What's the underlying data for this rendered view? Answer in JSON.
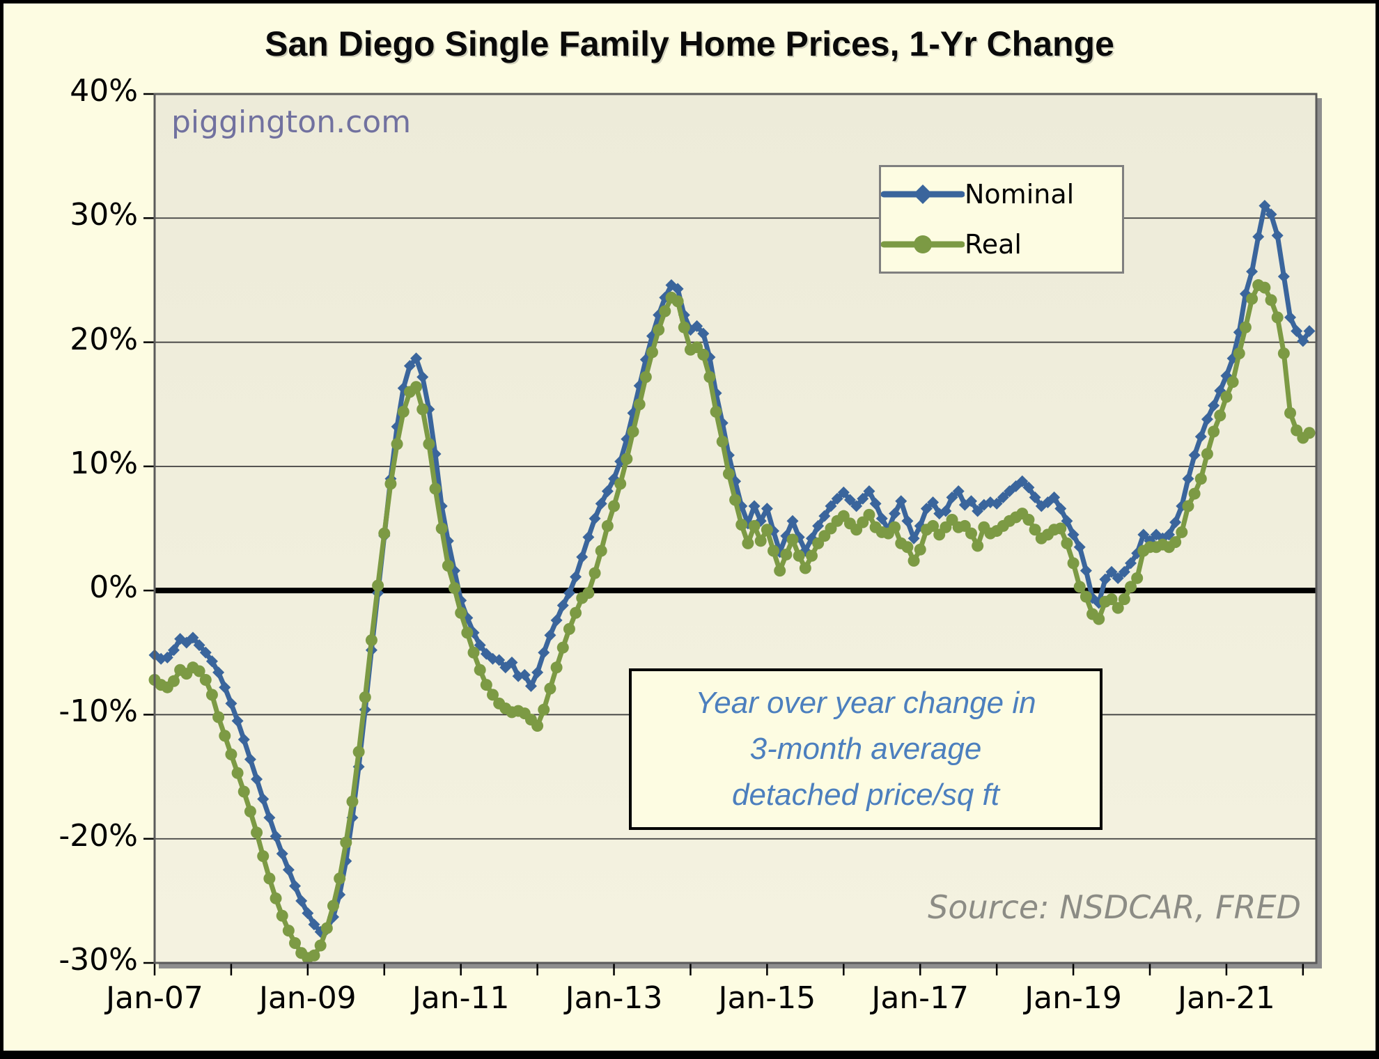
{
  "title": "San Diego Single Family Home Prices, 1-Yr Change",
  "watermark": "piggington.com",
  "source_note": "Source: NSDCAR, FRED",
  "annotation": {
    "lines": [
      "Year over year change in",
      "3-month average",
      "detached price/sq ft"
    ],
    "text_color": "#4C7FBE"
  },
  "colors": {
    "page_background": "#FDFCE2",
    "plot_background_top": "#EDEBD9",
    "plot_background_bottom": "#F4F2E0",
    "plot_border": "#5A5A5A",
    "plot_shadow": "#8E8E8E",
    "gridline": "#3F3F3F",
    "zero_line": "#000000",
    "nominal_line": "#3A659C",
    "real_line": "#7C9A44"
  },
  "chart_data": {
    "type": "line",
    "title": "San Diego Single Family Home Prices, 1-Yr Change",
    "xlabel": "",
    "ylabel": "",
    "ylim": [
      -30,
      40
    ],
    "y_ticks": [
      40,
      30,
      20,
      10,
      0,
      -10,
      -20,
      -30
    ],
    "y_tick_suffix": "%",
    "grid": "horizontal",
    "zero_line_emphasis": true,
    "legend_position": "upper-right-inside",
    "frequency": "monthly",
    "start": "Jan-2007",
    "end": "Feb-2022",
    "x_tick_labels": [
      "Jan-07",
      "Jan-09",
      "Jan-11",
      "Jan-13",
      "Jan-15",
      "Jan-17",
      "Jan-19",
      "Jan-21"
    ],
    "x_label_every_months": 24,
    "x_minor_tick_every_months": 12,
    "series": [
      {
        "name": "Nominal",
        "color": "#3A659C",
        "marker": "diamond",
        "values": [
          -5.2,
          -5.5,
          -5.4,
          -4.8,
          -3.9,
          -4.2,
          -3.8,
          -4.4,
          -5.0,
          -5.7,
          -6.6,
          -7.8,
          -9.1,
          -10.5,
          -12.0,
          -13.6,
          -15.2,
          -16.8,
          -18.3,
          -19.8,
          -21.2,
          -22.5,
          -23.8,
          -25.0,
          -26.0,
          -26.9,
          -27.5,
          -27.3,
          -26.3,
          -24.5,
          -21.8,
          -18.3,
          -14.2,
          -9.6,
          -4.8,
          -0.2,
          4.4,
          9.0,
          13.2,
          16.3,
          18.1,
          18.7,
          17.2,
          14.6,
          11.0,
          6.8,
          4.0,
          1.6,
          -0.8,
          -2.2,
          -3.4,
          -4.4,
          -5.1,
          -5.5,
          -5.6,
          -6.2,
          -5.8,
          -6.9,
          -6.8,
          -7.7,
          -6.6,
          -5.0,
          -3.6,
          -2.4,
          -1.2,
          -0.2,
          1.1,
          2.7,
          4.3,
          5.8,
          7.0,
          8.0,
          9.0,
          10.4,
          12.2,
          14.3,
          16.5,
          18.6,
          20.5,
          22.2,
          23.6,
          24.6,
          24.3,
          22.2,
          21.0,
          21.3,
          20.7,
          18.8,
          15.9,
          13.5,
          10.9,
          8.8,
          6.8,
          5.4,
          6.8,
          5.6,
          6.6,
          4.8,
          3.1,
          4.4,
          5.6,
          4.3,
          3.2,
          4.2,
          5.2,
          6.0,
          6.8,
          7.4,
          7.9,
          7.3,
          6.8,
          7.4,
          8.0,
          7.0,
          5.8,
          4.9,
          6.2,
          7.2,
          5.6,
          4.2,
          5.2,
          6.6,
          7.1,
          6.2,
          6.4,
          7.5,
          8.0,
          6.9,
          7.2,
          6.4,
          6.9,
          7.1,
          7.0,
          7.5,
          8.0,
          8.4,
          8.8,
          8.3,
          7.5,
          6.8,
          7.1,
          7.5,
          6.6,
          5.6,
          4.5,
          3.5,
          1.6,
          -0.6,
          -1.0,
          0.9,
          1.5,
          1.0,
          1.5,
          2.2,
          3.0,
          4.5,
          4.0,
          4.5,
          4.2,
          4.5,
          5.5,
          6.8,
          9.0,
          10.9,
          12.4,
          13.8,
          14.9,
          16.1,
          17.3,
          18.7,
          20.8,
          23.9,
          25.7,
          28.5,
          31.0,
          30.3,
          28.6,
          25.3,
          22.0,
          20.9,
          20.1,
          20.9
        ]
      },
      {
        "name": "Real",
        "color": "#7C9A44",
        "marker": "circle",
        "values": [
          -7.2,
          -7.6,
          -7.8,
          -7.3,
          -6.4,
          -6.7,
          -6.2,
          -6.5,
          -7.2,
          -8.4,
          -10.2,
          -11.7,
          -13.2,
          -14.7,
          -16.2,
          -17.8,
          -19.5,
          -21.4,
          -23.2,
          -24.8,
          -26.2,
          -27.4,
          -28.4,
          -29.2,
          -29.6,
          -29.4,
          -28.6,
          -27.2,
          -25.4,
          -23.2,
          -20.3,
          -17.0,
          -13.0,
          -8.6,
          -4.0,
          0.4,
          4.6,
          8.6,
          11.8,
          14.4,
          16.0,
          16.4,
          14.6,
          11.8,
          8.2,
          5.0,
          2.0,
          0.2,
          -1.8,
          -3.4,
          -5.0,
          -6.4,
          -7.6,
          -8.4,
          -9.1,
          -9.5,
          -9.8,
          -9.7,
          -9.9,
          -10.4,
          -10.9,
          -9.6,
          -7.9,
          -6.2,
          -4.6,
          -3.1,
          -1.8,
          -0.6,
          -0.2,
          1.4,
          3.2,
          5.2,
          6.8,
          8.6,
          10.6,
          12.8,
          15.0,
          17.2,
          19.2,
          21.0,
          22.5,
          23.6,
          23.3,
          21.2,
          19.4,
          19.6,
          19.0,
          17.2,
          14.4,
          12.0,
          9.4,
          7.3,
          5.3,
          3.8,
          5.2,
          4.0,
          4.9,
          3.2,
          1.6,
          2.9,
          4.1,
          2.8,
          1.8,
          2.8,
          3.8,
          4.4,
          5.0,
          5.6,
          6.0,
          5.4,
          4.9,
          5.5,
          6.1,
          5.1,
          4.7,
          4.6,
          5.1,
          3.8,
          3.5,
          2.4,
          3.3,
          4.9,
          5.2,
          4.5,
          5.1,
          5.7,
          5.1,
          5.2,
          4.6,
          3.6,
          5.1,
          4.6,
          4.8,
          5.2,
          5.6,
          5.9,
          6.2,
          5.7,
          4.9,
          4.2,
          4.5,
          4.9,
          5.0,
          3.8,
          2.2,
          0.3,
          -0.5,
          -1.9,
          -2.3,
          -0.9,
          -0.7,
          -1.4,
          -0.7,
          0.3,
          1.0,
          3.2,
          3.5,
          3.5,
          3.7,
          3.5,
          3.9,
          4.7,
          6.8,
          7.8,
          9.0,
          11.0,
          12.8,
          14.1,
          15.6,
          16.8,
          19.1,
          21.2,
          23.5,
          24.6,
          24.4,
          23.4,
          22.0,
          19.1,
          14.3,
          12.9,
          12.3,
          12.7
        ]
      }
    ]
  }
}
